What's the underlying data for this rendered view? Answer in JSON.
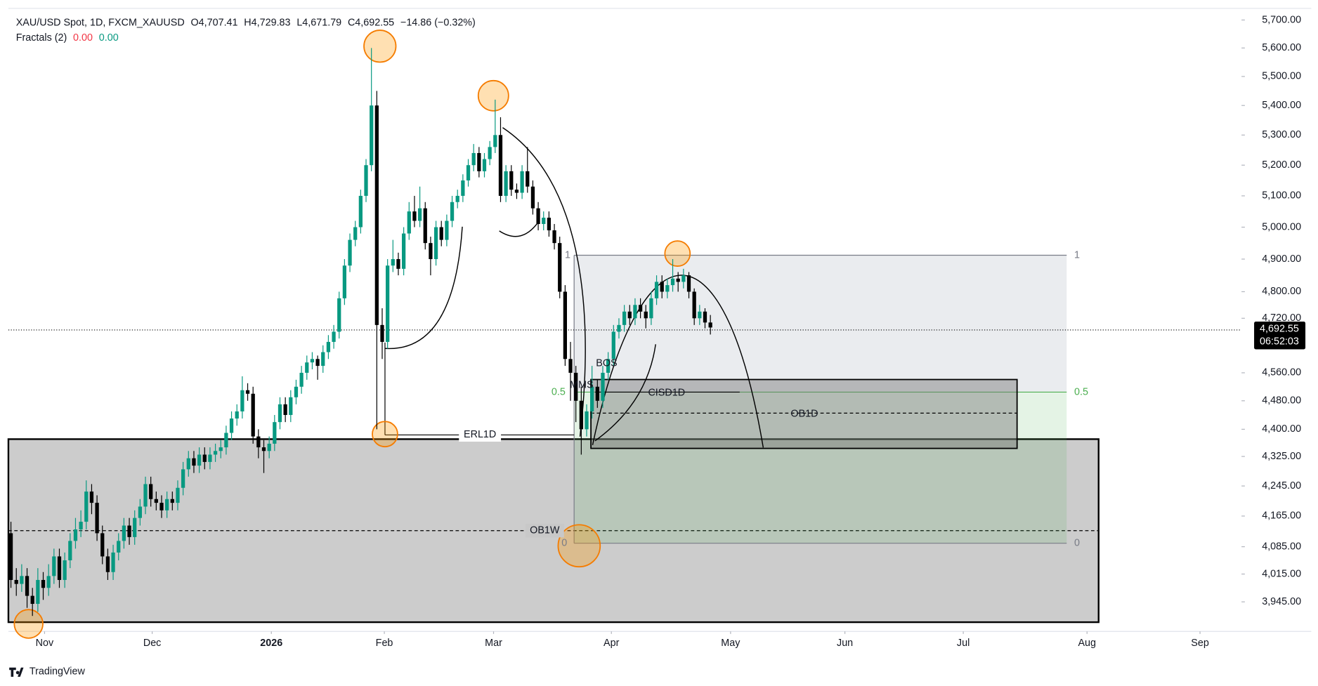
{
  "chart_data": {
    "type": "candlestick",
    "header": {
      "symbol": "XAU/USD Spot, 1D, FXCM_XAUUSD",
      "ohlc": [
        {
          "label": "O",
          "value": "4,707.41"
        },
        {
          "label": "H",
          "value": "4,729.83"
        },
        {
          "label": "L",
          "value": "4,671.79"
        },
        {
          "label": "C",
          "value": "4,692.55"
        }
      ],
      "change": "−14.86 (−0.32%)",
      "indicator": "Fractals (2)",
      "indicator_values": [
        "0.00",
        "0.00"
      ]
    },
    "up_color": "#089981",
    "down_color": "#000000",
    "log_scale": true,
    "grid": false,
    "candles": [
      [
        4120,
        4150,
        3980,
        4000
      ],
      [
        4000,
        4030,
        3960,
        3990
      ],
      [
        3990,
        4040,
        3970,
        4010
      ],
      [
        4010,
        4030,
        3930,
        3960
      ],
      [
        3960,
        3980,
        3910,
        3940
      ],
      [
        3940,
        4030,
        3920,
        4000
      ],
      [
        4000,
        4020,
        3950,
        3980
      ],
      [
        3980,
        4040,
        3960,
        4010
      ],
      [
        4010,
        4080,
        3990,
        4060
      ],
      [
        4060,
        4080,
        3980,
        4000
      ],
      [
        4000,
        4070,
        3980,
        4050
      ],
      [
        4050,
        4120,
        4030,
        4100
      ],
      [
        4100,
        4160,
        4080,
        4130
      ],
      [
        4130,
        4180,
        4110,
        4150
      ],
      [
        4150,
        4260,
        4130,
        4230
      ],
      [
        4230,
        4250,
        4170,
        4200
      ],
      [
        4200,
        4220,
        4100,
        4120
      ],
      [
        4120,
        4140,
        4040,
        4060
      ],
      [
        4060,
        4080,
        4000,
        4020
      ],
      [
        4020,
        4090,
        4000,
        4070
      ],
      [
        4070,
        4120,
        4050,
        4100
      ],
      [
        4100,
        4160,
        4080,
        4140
      ],
      [
        4140,
        4160,
        4090,
        4110
      ],
      [
        4110,
        4180,
        4090,
        4160
      ],
      [
        4160,
        4210,
        4140,
        4190
      ],
      [
        4190,
        4270,
        4170,
        4250
      ],
      [
        4250,
        4270,
        4190,
        4210
      ],
      [
        4210,
        4230,
        4180,
        4200
      ],
      [
        4200,
        4220,
        4160,
        4180
      ],
      [
        4180,
        4230,
        4160,
        4210
      ],
      [
        4210,
        4230,
        4180,
        4200
      ],
      [
        4200,
        4260,
        4180,
        4240
      ],
      [
        4240,
        4310,
        4220,
        4290
      ],
      [
        4290,
        4340,
        4270,
        4320
      ],
      [
        4320,
        4340,
        4280,
        4300
      ],
      [
        4300,
        4350,
        4280,
        4330
      ],
      [
        4330,
        4350,
        4290,
        4310
      ],
      [
        4310,
        4350,
        4290,
        4330
      ],
      [
        4330,
        4360,
        4310,
        4340
      ],
      [
        4340,
        4370,
        4320,
        4350
      ],
      [
        4350,
        4410,
        4330,
        4390
      ],
      [
        4390,
        4450,
        4370,
        4430
      ],
      [
        4430,
        4470,
        4410,
        4450
      ],
      [
        4450,
        4550,
        4430,
        4510
      ],
      [
        4510,
        4530,
        4480,
        4500
      ],
      [
        4500,
        4520,
        4360,
        4380
      ],
      [
        4380,
        4400,
        4320,
        4350
      ],
      [
        4350,
        4370,
        4280,
        4340
      ],
      [
        4340,
        4380,
        4320,
        4360
      ],
      [
        4360,
        4440,
        4340,
        4420
      ],
      [
        4420,
        4490,
        4400,
        4470
      ],
      [
        4470,
        4490,
        4420,
        4440
      ],
      [
        4440,
        4510,
        4420,
        4490
      ],
      [
        4490,
        4540,
        4470,
        4520
      ],
      [
        4520,
        4580,
        4500,
        4560
      ],
      [
        4560,
        4610,
        4540,
        4590
      ],
      [
        4590,
        4620,
        4570,
        4600
      ],
      [
        4600,
        4610,
        4540,
        4580
      ],
      [
        4580,
        4640,
        4560,
        4620
      ],
      [
        4620,
        4670,
        4600,
        4650
      ],
      [
        4650,
        4700,
        4630,
        4680
      ],
      [
        4680,
        4800,
        4660,
        4780
      ],
      [
        4780,
        4900,
        4760,
        4880
      ],
      [
        4880,
        4980,
        4860,
        4960
      ],
      [
        4960,
        5020,
        4940,
        5000
      ],
      [
        5000,
        5120,
        4980,
        5100
      ],
      [
        5100,
        5220,
        5080,
        5200
      ],
      [
        5200,
        5600,
        5180,
        5400
      ],
      [
        5400,
        5450,
        4400,
        4700
      ],
      [
        4700,
        4750,
        4600,
        4650
      ],
      [
        4650,
        4900,
        4630,
        4880
      ],
      [
        4880,
        4960,
        4860,
        4900
      ],
      [
        4900,
        4920,
        4850,
        4870
      ],
      [
        4870,
        5000,
        4850,
        4980
      ],
      [
        4980,
        5080,
        4960,
        5050
      ],
      [
        5050,
        5100,
        5000,
        5020
      ],
      [
        5020,
        5130,
        5000,
        5060
      ],
      [
        5060,
        5080,
        4930,
        4950
      ],
      [
        4950,
        4970,
        4850,
        4900
      ],
      [
        4900,
        5020,
        4880,
        5000
      ],
      [
        5000,
        5020,
        4940,
        4960
      ],
      [
        4960,
        5040,
        4940,
        5020
      ],
      [
        5020,
        5100,
        5000,
        5080
      ],
      [
        5080,
        5120,
        5060,
        5100
      ],
      [
        5100,
        5170,
        5080,
        5150
      ],
      [
        5150,
        5220,
        5130,
        5200
      ],
      [
        5200,
        5270,
        5180,
        5240
      ],
      [
        5240,
        5260,
        5160,
        5180
      ],
      [
        5180,
        5240,
        5160,
        5220
      ],
      [
        5220,
        5280,
        5200,
        5260
      ],
      [
        5260,
        5420,
        5240,
        5300
      ],
      [
        5300,
        5360,
        5080,
        5100
      ],
      [
        5100,
        5200,
        5080,
        5180
      ],
      [
        5180,
        5200,
        5100,
        5120
      ],
      [
        5120,
        5140,
        5090,
        5110
      ],
      [
        5110,
        5200,
        5090,
        5180
      ],
      [
        5180,
        5260,
        5110,
        5130
      ],
      [
        5130,
        5150,
        5040,
        5060
      ],
      [
        5060,
        5080,
        4990,
        5010
      ],
      [
        5010,
        5050,
        4990,
        5030
      ],
      [
        5030,
        5050,
        4970,
        4990
      ],
      [
        4990,
        5010,
        4930,
        4950
      ],
      [
        4950,
        4970,
        4780,
        4800
      ],
      [
        4800,
        4820,
        4580,
        4600
      ],
      [
        4600,
        4650,
        4480,
        4560
      ],
      [
        4560,
        4580,
        4420,
        4480
      ],
      [
        4480,
        4520,
        4330,
        4400
      ],
      [
        4400,
        4470,
        4380,
        4450
      ],
      [
        4450,
        4580,
        4430,
        4520
      ],
      [
        4520,
        4540,
        4460,
        4480
      ],
      [
        4480,
        4580,
        4460,
        4560
      ],
      [
        4560,
        4620,
        4540,
        4600
      ],
      [
        4600,
        4700,
        4580,
        4680
      ],
      [
        4680,
        4720,
        4660,
        4700
      ],
      [
        4700,
        4760,
        4680,
        4740
      ],
      [
        4740,
        4760,
        4700,
        4720
      ],
      [
        4720,
        4780,
        4700,
        4760
      ],
      [
        4760,
        4780,
        4720,
        4740
      ],
      [
        4740,
        4760,
        4690,
        4720
      ],
      [
        4720,
        4800,
        4700,
        4780
      ],
      [
        4780,
        4850,
        4760,
        4830
      ],
      [
        4830,
        4850,
        4780,
        4800
      ],
      [
        4800,
        4840,
        4780,
        4820
      ],
      [
        4820,
        4900,
        4800,
        4840
      ],
      [
        4840,
        4860,
        4800,
        4830
      ],
      [
        4830,
        4870,
        4810,
        4850
      ],
      [
        4850,
        4860,
        4780,
        4800
      ],
      [
        4800,
        4810,
        4700,
        4720
      ],
      [
        4720,
        4760,
        4700,
        4740
      ],
      [
        4740,
        4750,
        4690,
        4707.41
      ],
      [
        4707.41,
        4729.83,
        4671.79,
        4692.55
      ]
    ],
    "xlim": [
      -0.47,
      228.4
    ],
    "xticks": [
      {
        "value": 6.25,
        "label": "Nov"
      },
      {
        "value": 26.25,
        "label": "Dec"
      },
      {
        "value": 48.4,
        "label": "2026"
      },
      {
        "value": 69.4,
        "label": "Feb"
      },
      {
        "value": 89.7,
        "label": "Mar"
      },
      {
        "value": 111.6,
        "label": "Apr"
      },
      {
        "value": 133.75,
        "label": "May"
      },
      {
        "value": 155,
        "label": "Jun"
      },
      {
        "value": 177,
        "label": "Jul"
      },
      {
        "value": 200,
        "label": "Aug"
      },
      {
        "value": 221,
        "label": "Sep"
      }
    ],
    "ylim": [
      3876,
      5742
    ],
    "yticks": [
      {
        "value": 5700,
        "label": "5,700.00"
      },
      {
        "value": 5600,
        "label": "5,600.00"
      },
      {
        "value": 5500,
        "label": "5,500.00"
      },
      {
        "value": 5400,
        "label": "5,400.00"
      },
      {
        "value": 5300,
        "label": "5,300.00"
      },
      {
        "value": 5200,
        "label": "5,200.00"
      },
      {
        "value": 5100,
        "label": "5,100.00"
      },
      {
        "value": 5000,
        "label": "5,000.00"
      },
      {
        "value": 4900,
        "label": "4,900.00"
      },
      {
        "value": 4800,
        "label": "4,800.00"
      },
      {
        "value": 4720,
        "label": "4,720.00"
      },
      {
        "value": 4560,
        "label": "4,560.00"
      },
      {
        "value": 4480,
        "label": "4,480.00"
      },
      {
        "value": 4400,
        "label": "4,400.00"
      },
      {
        "value": 4325,
        "label": "4,325.00"
      },
      {
        "value": 4245,
        "label": "4,245.00"
      },
      {
        "value": 4165,
        "label": "4,165.00"
      },
      {
        "value": 4085,
        "label": "4,085.00"
      },
      {
        "value": 4015,
        "label": "4,015.00"
      },
      {
        "value": 3945,
        "label": "3,945.00"
      }
    ],
    "last_price": {
      "label": "4,692.55",
      "countdown": "06:52:03"
    },
    "annotations": {
      "bos": "BOS",
      "mms": "MMS",
      "cisd": "CISD1D",
      "ob1d": "OB1D",
      "erl": "ERL1D",
      "ob1w": "OB1W",
      "fib_1_left": "1",
      "fib_1_right": "1",
      "fib_half_left": "0.5",
      "fib_half_right": "0.5",
      "fib_0_left": "0",
      "fib_0_right": "0"
    },
    "brand": "TradingView"
  }
}
